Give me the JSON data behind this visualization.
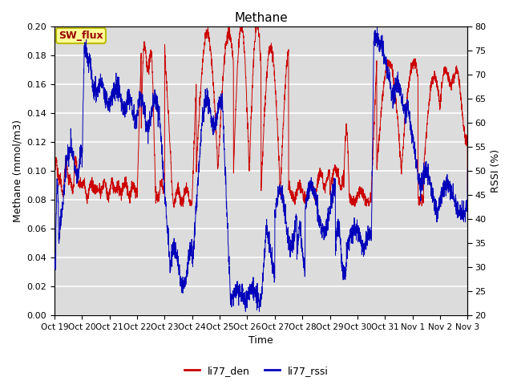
{
  "title": "Methane",
  "xlabel": "Time",
  "ylabel_left": "Methane (mmol/m3)",
  "ylabel_right": "RSSI (%)",
  "ylim_left": [
    0.0,
    0.2
  ],
  "ylim_right": [
    20,
    80
  ],
  "yticks_left": [
    0.0,
    0.02,
    0.04,
    0.06,
    0.08,
    0.1,
    0.12,
    0.14,
    0.16,
    0.18,
    0.2
  ],
  "yticks_right": [
    20,
    25,
    30,
    35,
    40,
    45,
    50,
    55,
    60,
    65,
    70,
    75,
    80
  ],
  "xtick_labels": [
    "Oct 19",
    "Oct 20",
    "Oct 21",
    "Oct 22",
    "Oct 23",
    "Oct 24",
    "Oct 25",
    "Oct 26",
    "Oct 27",
    "Oct 28",
    "Oct 29",
    "Oct 30",
    "Oct 31",
    "Nov 1",
    "Nov 2",
    "Nov 3"
  ],
  "bg_color": "#dcdcdc",
  "grid_color": "#ffffff",
  "line_color_den": "#cc0000",
  "line_color_rssi": "#0000bb",
  "legend_label_den": "li77_den",
  "legend_label_rssi": "li77_rssi",
  "annotation_text": "SW_flux",
  "annotation_bg": "#ffff99",
  "annotation_border": "#bbbb00",
  "fig_width": 6.4,
  "fig_height": 4.8,
  "dpi": 100
}
